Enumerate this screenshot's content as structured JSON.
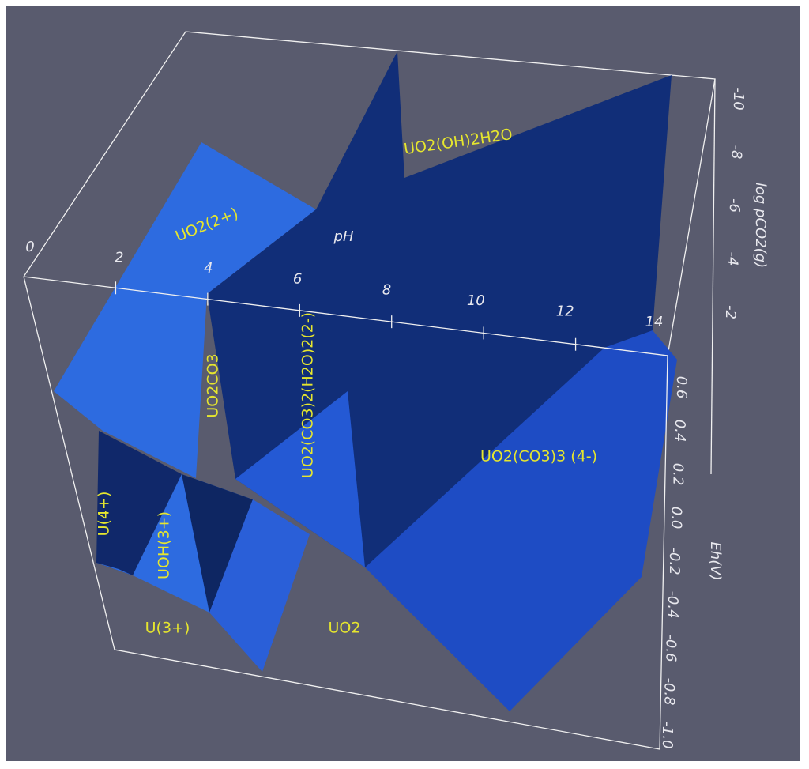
{
  "axes": {
    "ph": {
      "label": "pH",
      "ticks": [
        "0",
        "2",
        "4",
        "6",
        "8",
        "10",
        "12",
        "14"
      ]
    },
    "eh": {
      "label": "Eh(V)",
      "ticks": [
        "0.6",
        "0.4",
        "0.2",
        "0.0",
        "-0.2",
        "-0.4",
        "-0.6",
        "-0.8",
        "-1.0"
      ]
    },
    "pco2": {
      "label": "log pCO2(g)",
      "ticks": [
        "-2",
        "-4",
        "-6",
        "-8",
        "-10"
      ]
    }
  },
  "regions": [
    {
      "label": "UO2(OH)2H2O"
    },
    {
      "label": "UO2(2+)"
    },
    {
      "label": "UO2CO3"
    },
    {
      "label": "UO2(CO3)2(H2O)2(2-)"
    },
    {
      "label": "UO2(CO3)3 (4-)"
    },
    {
      "label": "U(4+)"
    },
    {
      "label": "UOH(3+)"
    },
    {
      "label": "U(3+)"
    },
    {
      "label": "UO2"
    }
  ]
}
